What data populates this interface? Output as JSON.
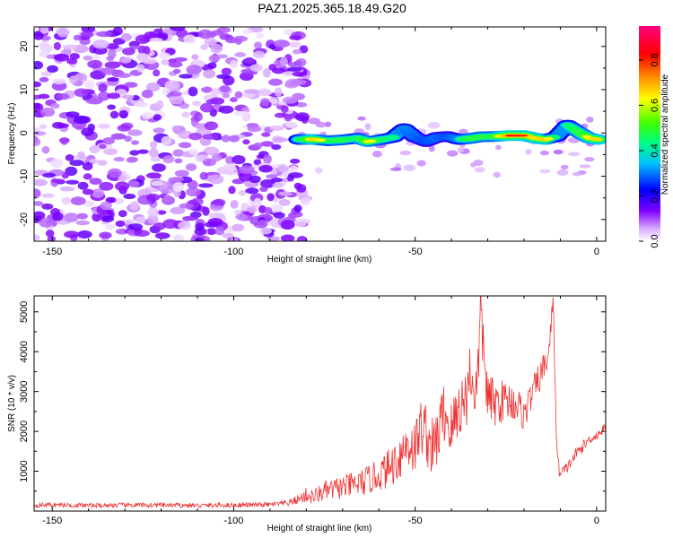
{
  "title": "PAZ1.2025.365.18.49.G20",
  "chart_data": [
    {
      "type": "heatmap",
      "title": "PAZ1.2025.365.18.49.G20",
      "xlabel": "Height of straight line (km)",
      "ylabel": "Frequency (Hz)",
      "xlim": [
        -155,
        2.5
      ],
      "ylim": [
        -25,
        24.5
      ],
      "xticks": [
        -150,
        -100,
        -50,
        0
      ],
      "yticks": [
        -20,
        -10,
        0,
        10,
        20
      ],
      "xtick_labels": [
        "-150",
        "-100",
        "-50",
        "0"
      ],
      "ytick_labels": [
        "-20",
        "-10",
        "0",
        "10",
        "20"
      ],
      "colorbar": {
        "label": "Normalized spectral amplitude",
        "range": [
          0,
          0.95
        ],
        "ticks": [
          0.0,
          0.2,
          0.4,
          0.6,
          0.8
        ],
        "tick_labels": [
          "0.0",
          "0.2",
          "0.4",
          "0.6",
          "0.8"
        ],
        "colors": [
          "#ffffff",
          "#8000ff",
          "#0000ff",
          "#00ffff",
          "#00ff00",
          "#ffff00",
          "#ff8000",
          "#ff0000",
          "#ff0080"
        ]
      },
      "noise_region_x": [
        -155,
        -80
      ],
      "signal_ridge": [
        {
          "x": -82,
          "y": -1.5,
          "a": 0.45
        },
        {
          "x": -78,
          "y": -1.5,
          "a": 0.8
        },
        {
          "x": -74,
          "y": -1.8,
          "a": 0.55
        },
        {
          "x": -70,
          "y": -1.6,
          "a": 0.6
        },
        {
          "x": -66,
          "y": -1.2,
          "a": 0.5
        },
        {
          "x": -63,
          "y": -2.0,
          "a": 0.7
        },
        {
          "x": -59,
          "y": -1.5,
          "a": 0.55
        },
        {
          "x": -56,
          "y": -1.0,
          "a": 0.45
        },
        {
          "x": -53,
          "y": 1.0,
          "a": 0.4
        },
        {
          "x": -50,
          "y": -1.0,
          "a": 0.35
        },
        {
          "x": -47,
          "y": -2.0,
          "a": 0.3
        },
        {
          "x": -44,
          "y": -1.0,
          "a": 0.35
        },
        {
          "x": -41,
          "y": -0.8,
          "a": 0.3
        },
        {
          "x": -38,
          "y": -1.5,
          "a": 0.4
        },
        {
          "x": -35,
          "y": -1.3,
          "a": 0.6
        },
        {
          "x": -32,
          "y": -0.9,
          "a": 0.6
        },
        {
          "x": -28,
          "y": -0.8,
          "a": 0.6
        },
        {
          "x": -24,
          "y": -0.6,
          "a": 0.9
        },
        {
          "x": -20,
          "y": -0.6,
          "a": 0.85
        },
        {
          "x": -17,
          "y": -1.2,
          "a": 0.75
        },
        {
          "x": -14,
          "y": -1.5,
          "a": 0.8
        },
        {
          "x": -11,
          "y": -0.8,
          "a": 0.4
        },
        {
          "x": -8,
          "y": 1.8,
          "a": 0.45
        },
        {
          "x": -5,
          "y": 0.2,
          "a": 0.6
        },
        {
          "x": -2,
          "y": -1.2,
          "a": 0.7
        },
        {
          "x": 1,
          "y": -1.6,
          "a": 0.8
        }
      ]
    },
    {
      "type": "line",
      "xlabel": "Height of straight line (km)",
      "ylabel": "SNR (10 * v/v)",
      "xlim": [
        -155,
        2.5
      ],
      "ylim": [
        0,
        5400
      ],
      "xticks": [
        -150,
        -100,
        -50,
        0
      ],
      "yticks": [
        1000,
        2000,
        3000,
        4000,
        5000
      ],
      "xtick_labels": [
        "-150",
        "-100",
        "-50",
        "0"
      ],
      "ytick_labels": [
        "1000",
        "2000",
        "3000",
        "4000",
        "5000"
      ],
      "series": [
        {
          "name": "SNR",
          "color": "#ee3333",
          "x": [
            -155,
            -150,
            -140,
            -130,
            -120,
            -110,
            -100,
            -90,
            -85,
            -82,
            -80,
            -78,
            -75,
            -70,
            -65,
            -60,
            -57,
            -55,
            -52,
            -50,
            -48,
            -45,
            -42,
            -40,
            -38,
            -36,
            -35,
            -33,
            -32,
            -30,
            -28,
            -25,
            -22,
            -20,
            -18,
            -16,
            -14,
            -13,
            -12,
            -11,
            -10,
            -8,
            -6,
            -4,
            -2,
            0,
            2.5
          ],
          "values": [
            150,
            160,
            140,
            150,
            150,
            140,
            150,
            160,
            200,
            300,
            400,
            350,
            500,
            600,
            700,
            900,
            1100,
            1300,
            1700,
            1600,
            2200,
            1500,
            2500,
            2000,
            2600,
            2800,
            3500,
            2900,
            5000,
            2800,
            2700,
            2800,
            2700,
            2400,
            2900,
            3300,
            3700,
            4100,
            5400,
            1500,
            900,
            1100,
            1400,
            1600,
            1800,
            1900,
            2100
          ],
          "noise_amplitude": [
            60,
            60,
            60,
            60,
            60,
            60,
            60,
            60,
            80,
            120,
            200,
            200,
            250,
            300,
            350,
            400,
            500,
            600,
            700,
            700,
            800,
            800,
            800,
            800,
            800,
            800,
            800,
            800,
            800,
            700,
            600,
            500,
            500,
            400,
            400,
            400,
            400,
            300,
            200,
            200,
            200,
            150,
            150,
            150,
            120,
            120,
            120
          ]
        }
      ]
    }
  ]
}
